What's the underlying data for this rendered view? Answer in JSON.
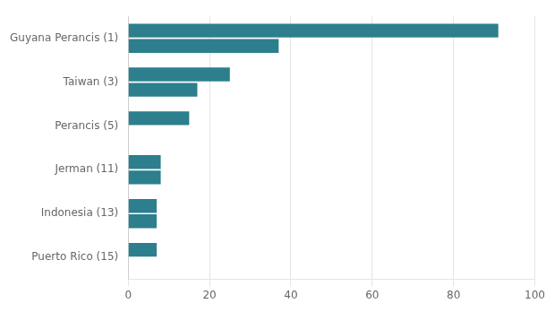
{
  "chart_data": {
    "type": "bar",
    "orientation": "horizontal",
    "categories": [
      "Guyana Perancis (1)",
      "Taiwan (3)",
      "Perancis (5)",
      "Jerman (11)",
      "Indonesia (13)",
      "Puerto Rico (15)"
    ],
    "series": [
      {
        "color": "#2d7f8d",
        "values": [
          91,
          25,
          15,
          8,
          7,
          7
        ]
      },
      {
        "color": "#2d7f8d",
        "values": [
          37,
          17,
          0,
          8,
          7,
          0
        ]
      }
    ],
    "xlim": [
      0,
      100
    ],
    "xticks": [
      0,
      20,
      40,
      60,
      80,
      100
    ],
    "grid": true
  }
}
